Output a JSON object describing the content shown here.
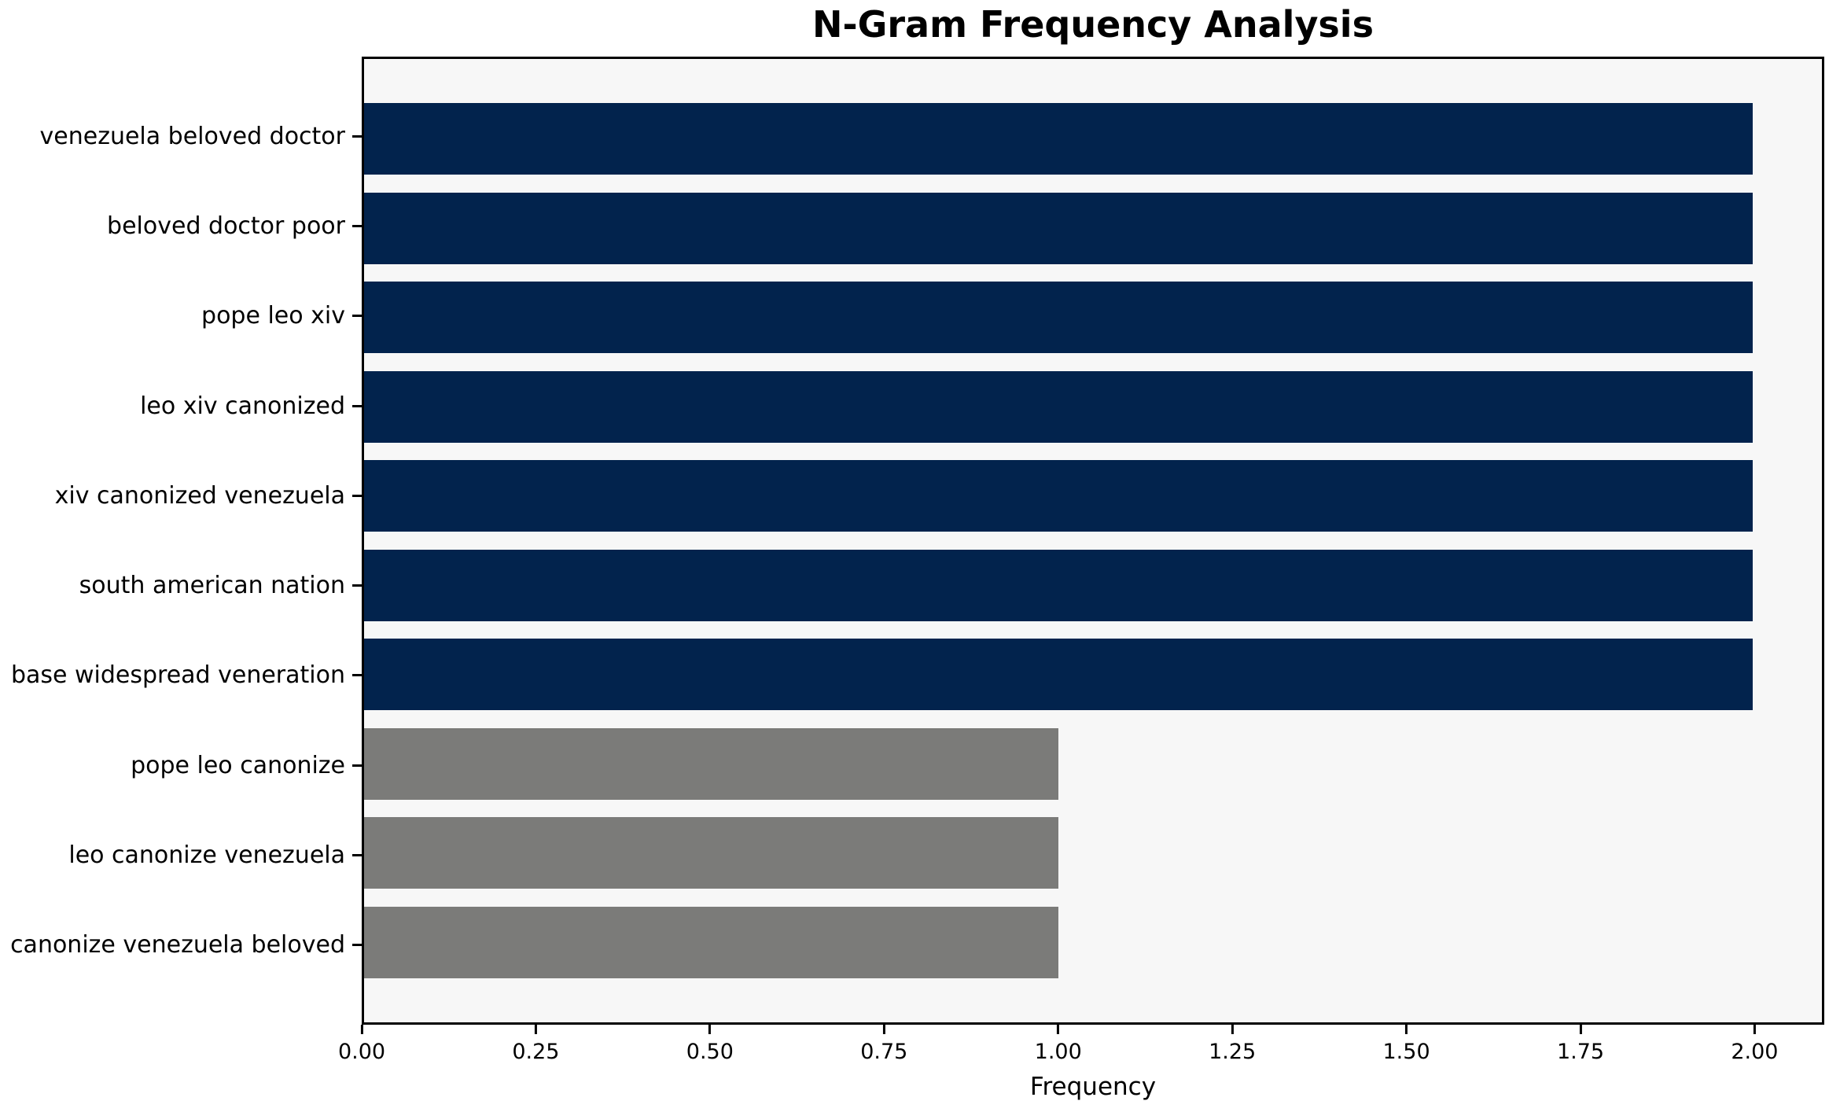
{
  "chart_data": {
    "type": "bar",
    "orientation": "horizontal",
    "title": "N-Gram Frequency Analysis",
    "xlabel": "Frequency",
    "ylabel": "",
    "categories": [
      "venezuela beloved doctor",
      "beloved doctor poor",
      "pope leo xiv",
      "leo xiv canonized",
      "xiv canonized venezuela",
      "south american nation",
      "base widespread veneration",
      "pope leo canonize",
      "leo canonize venezuela",
      "canonize venezuela beloved"
    ],
    "values": [
      2,
      2,
      2,
      2,
      2,
      2,
      2,
      1,
      1,
      1
    ],
    "bar_colors": [
      "#02234d",
      "#02234d",
      "#02234d",
      "#02234d",
      "#02234d",
      "#02234d",
      "#02234d",
      "#7b7b79",
      "#7b7b79",
      "#7b7b79"
    ],
    "xlim": [
      0,
      2.1
    ],
    "xtick_values": [
      0,
      0.25,
      0.5,
      0.75,
      1.0,
      1.25,
      1.5,
      1.75,
      2.0
    ],
    "xtick_labels": [
      "0.00",
      "0.25",
      "0.50",
      "0.75",
      "1.00",
      "1.25",
      "1.50",
      "1.75",
      "2.00"
    ],
    "grid": false,
    "legend": null,
    "colors": {
      "frequency_2_bar": "#02234d",
      "frequency_1_bar": "#7b7b79",
      "plot_background": "#f7f7f7",
      "figure_background": "#ffffff",
      "axis_line": "#000000",
      "text": "#000000"
    }
  }
}
